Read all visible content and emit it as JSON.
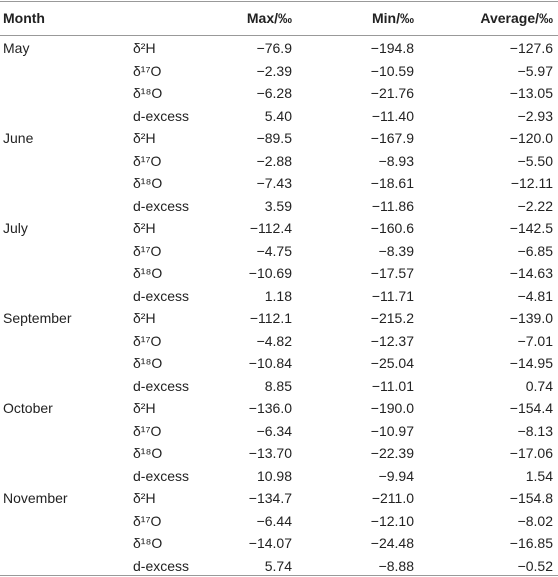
{
  "table": {
    "columns": [
      "Month",
      "Max/‰",
      "Min/‰",
      "Average/‰"
    ],
    "months": [
      {
        "name": "May",
        "rows": [
          {
            "param": "δ²H",
            "max": "−76.9",
            "min": "−194.8",
            "avg": "−127.6"
          },
          {
            "param": "δ¹⁷O",
            "max": "−2.39",
            "min": "−10.59",
            "avg": "−5.97"
          },
          {
            "param": "δ¹⁸O",
            "max": "−6.28",
            "min": "−21.76",
            "avg": "−13.05"
          },
          {
            "param": "d-excess",
            "max": "5.40",
            "min": "−11.40",
            "avg": "−2.93"
          }
        ]
      },
      {
        "name": "June",
        "rows": [
          {
            "param": "δ²H",
            "max": "−89.5",
            "min": "−167.9",
            "avg": "−120.0"
          },
          {
            "param": "δ¹⁷O",
            "max": "−2.88",
            "min": "−8.93",
            "avg": "−5.50"
          },
          {
            "param": "δ¹⁸O",
            "max": "−7.43",
            "min": "−18.61",
            "avg": "−12.11"
          },
          {
            "param": "d-excess",
            "max": "3.59",
            "min": "−11.86",
            "avg": "−2.22"
          }
        ]
      },
      {
        "name": "July",
        "rows": [
          {
            "param": "δ²H",
            "max": "−112.4",
            "min": "−160.6",
            "avg": "−142.5"
          },
          {
            "param": "δ¹⁷O",
            "max": "−4.75",
            "min": "−8.39",
            "avg": "−6.85"
          },
          {
            "param": "δ¹⁸O",
            "max": "−10.69",
            "min": "−17.57",
            "avg": "−14.63"
          },
          {
            "param": "d-excess",
            "max": "1.18",
            "min": "−11.71",
            "avg": "−4.81"
          }
        ]
      },
      {
        "name": "September",
        "rows": [
          {
            "param": "δ²H",
            "max": "−112.1",
            "min": "−215.2",
            "avg": "−139.0"
          },
          {
            "param": "δ¹⁷O",
            "max": "−4.82",
            "min": "−12.37",
            "avg": "−7.01"
          },
          {
            "param": "δ¹⁸O",
            "max": "−10.84",
            "min": "−25.04",
            "avg": "−14.95"
          },
          {
            "param": "d-excess",
            "max": "8.85",
            "min": "−11.01",
            "avg": "0.74"
          }
        ]
      },
      {
        "name": "October",
        "rows": [
          {
            "param": "δ²H",
            "max": "−136.0",
            "min": "−190.0",
            "avg": "−154.4"
          },
          {
            "param": "δ¹⁷O",
            "max": "−6.34",
            "min": "−10.97",
            "avg": "−8.13"
          },
          {
            "param": "δ¹⁸O",
            "max": "−13.70",
            "min": "−22.39",
            "avg": "−17.06"
          },
          {
            "param": "d-excess",
            "max": "10.98",
            "min": "−9.94",
            "avg": "1.54"
          }
        ]
      },
      {
        "name": "November",
        "rows": [
          {
            "param": "δ²H",
            "max": "−134.7",
            "min": "−211.0",
            "avg": "−154.8"
          },
          {
            "param": "δ¹⁷O",
            "max": "−6.44",
            "min": "−12.10",
            "avg": "−8.02"
          },
          {
            "param": "δ¹⁸O",
            "max": "−14.07",
            "min": "−24.48",
            "avg": "−16.85"
          },
          {
            "param": "d-excess",
            "max": "5.74",
            "min": "−8.88",
            "avg": "−0.52"
          }
        ]
      }
    ]
  }
}
